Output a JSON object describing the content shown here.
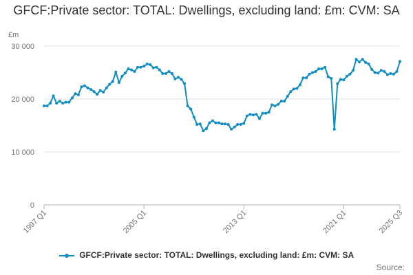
{
  "chart_data": {
    "type": "line",
    "title": "GFCF:Private sector: TOTAL: Dwellings, excluding land: £m: CVM: SA",
    "ylabel": "£m",
    "xlabel": "",
    "ylim": [
      0,
      30000
    ],
    "y_ticks": [
      0,
      10000,
      20000,
      30000
    ],
    "y_tick_labels": [
      "0",
      "10 000",
      "20 000",
      "30 000"
    ],
    "x_tick_labels": [
      "1997 Q1",
      "2005 Q1",
      "2013 Q1",
      "2021 Q1",
      "2025 Q3"
    ],
    "grid": true,
    "legend_position": "bottom",
    "color": "#0f8cc3",
    "source_label": "Source:",
    "series": [
      {
        "name": "GFCF:Private sector: TOTAL: Dwellings, excluding land: £m: CVM: SA",
        "x": [
          "1997 Q1",
          "1997 Q2",
          "1997 Q3",
          "1997 Q4",
          "1998 Q1",
          "1998 Q2",
          "1998 Q3",
          "1998 Q4",
          "1999 Q1",
          "1999 Q2",
          "1999 Q3",
          "1999 Q4",
          "2000 Q1",
          "2000 Q2",
          "2000 Q3",
          "2000 Q4",
          "2001 Q1",
          "2001 Q2",
          "2001 Q3",
          "2001 Q4",
          "2002 Q1",
          "2002 Q2",
          "2002 Q3",
          "2002 Q4",
          "2003 Q1",
          "2003 Q2",
          "2003 Q3",
          "2003 Q4",
          "2004 Q1",
          "2004 Q2",
          "2004 Q3",
          "2004 Q4",
          "2005 Q1",
          "2005 Q2",
          "2005 Q3",
          "2005 Q4",
          "2006 Q1",
          "2006 Q2",
          "2006 Q3",
          "2006 Q4",
          "2007 Q1",
          "2007 Q2",
          "2007 Q3",
          "2007 Q4",
          "2008 Q1",
          "2008 Q2",
          "2008 Q3",
          "2008 Q4",
          "2009 Q1",
          "2009 Q2",
          "2009 Q3",
          "2009 Q4",
          "2010 Q1",
          "2010 Q2",
          "2010 Q3",
          "2010 Q4",
          "2011 Q1",
          "2011 Q2",
          "2011 Q3",
          "2011 Q4",
          "2012 Q1",
          "2012 Q2",
          "2012 Q3",
          "2012 Q4",
          "2013 Q1",
          "2013 Q2",
          "2013 Q3",
          "2013 Q4",
          "2014 Q1",
          "2014 Q2",
          "2014 Q3",
          "2014 Q4",
          "2015 Q1",
          "2015 Q2",
          "2015 Q3",
          "2015 Q4",
          "2016 Q1",
          "2016 Q2",
          "2016 Q3",
          "2016 Q4",
          "2017 Q1",
          "2017 Q2",
          "2017 Q3",
          "2017 Q4",
          "2018 Q1",
          "2018 Q2",
          "2018 Q3",
          "2018 Q4",
          "2019 Q1",
          "2019 Q2",
          "2019 Q3",
          "2019 Q4",
          "2020 Q1",
          "2020 Q2",
          "2020 Q3",
          "2020 Q4",
          "2021 Q1",
          "2021 Q2",
          "2021 Q3",
          "2021 Q4",
          "2022 Q1",
          "2022 Q2",
          "2022 Q3",
          "2022 Q4",
          "2023 Q1",
          "2023 Q2",
          "2023 Q3",
          "2023 Q4",
          "2024 Q1",
          "2024 Q2",
          "2024 Q3",
          "2024 Q4",
          "2025 Q1",
          "2025 Q2",
          "2025 Q3"
        ],
        "values": [
          18700,
          18700,
          19200,
          20600,
          19200,
          19600,
          19200,
          19400,
          19400,
          20200,
          21000,
          20800,
          22300,
          22500,
          22100,
          21800,
          21400,
          20900,
          21600,
          21300,
          22100,
          22800,
          23300,
          25100,
          23100,
          24300,
          24900,
          25700,
          25500,
          25200,
          26000,
          26000,
          26200,
          26600,
          26500,
          25900,
          26000,
          25500,
          24800,
          24800,
          25200,
          24800,
          23800,
          24100,
          23700,
          22900,
          18700,
          18100,
          16600,
          15200,
          15300,
          14000,
          14400,
          15500,
          15900,
          15500,
          15500,
          15300,
          15300,
          15200,
          14300,
          14700,
          15200,
          15200,
          15400,
          16800,
          17100,
          17000,
          17100,
          16300,
          17300,
          17300,
          17500,
          18900,
          18700,
          19000,
          19600,
          19600,
          20500,
          21400,
          21900,
          22000,
          22700,
          24000,
          24000,
          24700,
          25000,
          25200,
          25700,
          25700,
          26000,
          24200,
          23900,
          14300,
          22900,
          23700,
          23600,
          24300,
          24700,
          25400,
          27500,
          27000,
          27500,
          26900,
          26600,
          25600,
          25000,
          24900,
          25400,
          25200,
          24600,
          24800,
          24700,
          25200,
          27100
        ]
      }
    ]
  }
}
